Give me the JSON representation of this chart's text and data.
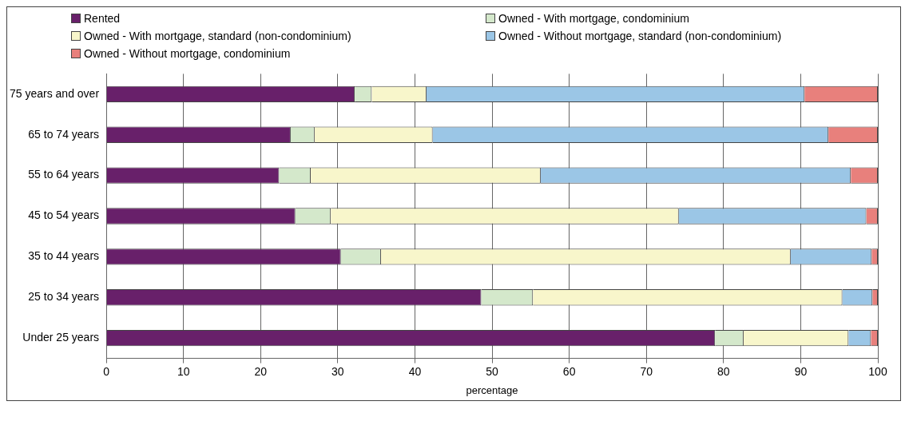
{
  "chart_data": {
    "type": "bar",
    "orientation": "horizontal",
    "stacked": true,
    "xlabel": "percentage",
    "categories": [
      "75 years and over",
      "65 to 74 years",
      "55 to 64 years",
      "45 to 54 years",
      "35 to 44 years",
      "25 to 34 years",
      "Under 25 years"
    ],
    "series": [
      {
        "name": "Rented",
        "color": "#68206a",
        "values": [
          32.2,
          23.9,
          22.4,
          24.5,
          30.4,
          48.6,
          78.9
        ]
      },
      {
        "name": "Owned - With mortgage, condominium",
        "color": "#d4e8cb",
        "values": [
          2.2,
          3.1,
          4.1,
          4.6,
          5.2,
          6.7,
          3.7
        ]
      },
      {
        "name": "Owned - With mortgage, standard (non-condominium)",
        "color": "#f8f6cb",
        "values": [
          7.1,
          15.3,
          29.8,
          45.1,
          53.1,
          40.1,
          13.6
        ]
      },
      {
        "name": "Owned - Without mortgage, standard (non-condominium)",
        "color": "#9bc6e6",
        "values": [
          49.0,
          51.3,
          40.2,
          24.3,
          10.5,
          3.9,
          2.9
        ]
      },
      {
        "name": "Owned - Without mortgage, condominium",
        "color": "#e8807c",
        "values": [
          9.5,
          6.4,
          3.5,
          1.5,
          0.8,
          0.7,
          0.9
        ]
      }
    ],
    "xlim": [
      0,
      100
    ],
    "xticks": [
      0,
      10,
      20,
      30,
      40,
      50,
      60,
      70,
      80,
      90,
      100
    ],
    "grid": "x",
    "legend": "top"
  }
}
